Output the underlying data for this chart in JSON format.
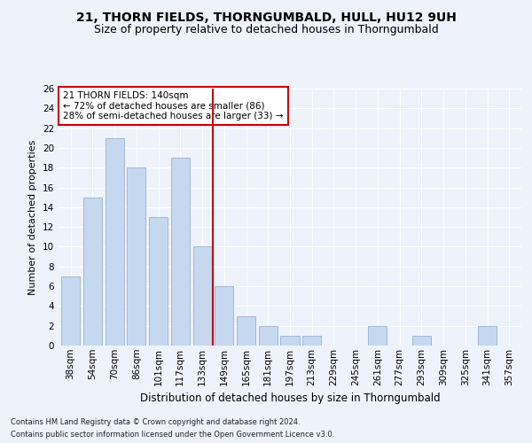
{
  "title1": "21, THORN FIELDS, THORNGUMBALD, HULL, HU12 9UH",
  "title2": "Size of property relative to detached houses in Thorngumbald",
  "xlabel": "Distribution of detached houses by size in Thorngumbald",
  "ylabel": "Number of detached properties",
  "categories": [
    "38sqm",
    "54sqm",
    "70sqm",
    "86sqm",
    "101sqm",
    "117sqm",
    "133sqm",
    "149sqm",
    "165sqm",
    "181sqm",
    "197sqm",
    "213sqm",
    "229sqm",
    "245sqm",
    "261sqm",
    "277sqm",
    "293sqm",
    "309sqm",
    "325sqm",
    "341sqm",
    "357sqm"
  ],
  "values": [
    7,
    15,
    21,
    18,
    13,
    19,
    10,
    6,
    3,
    2,
    1,
    1,
    0,
    0,
    2,
    0,
    1,
    0,
    0,
    2,
    0
  ],
  "bar_color": "#c5d8f0",
  "bar_edgecolor": "#a0b8d8",
  "vline_color": "#cc0000",
  "vline_x": 6.5,
  "annotation_text": "21 THORN FIELDS: 140sqm\n← 72% of detached houses are smaller (86)\n28% of semi-detached houses are larger (33) →",
  "annotation_box_facecolor": "#ffffff",
  "annotation_box_edgecolor": "#cc0000",
  "ylim": [
    0,
    26
  ],
  "yticks": [
    0,
    2,
    4,
    6,
    8,
    10,
    12,
    14,
    16,
    18,
    20,
    22,
    24,
    26
  ],
  "background_color": "#eef2fb",
  "grid_color": "#ffffff",
  "title1_fontsize": 10,
  "title2_fontsize": 9,
  "ylabel_fontsize": 8,
  "xlabel_fontsize": 8.5,
  "tick_fontsize": 7.5,
  "annotation_fontsize": 7.5,
  "footnote1": "Contains HM Land Registry data © Crown copyright and database right 2024.",
  "footnote2": "Contains public sector information licensed under the Open Government Licence v3.0.",
  "footnote_fontsize": 6.0
}
